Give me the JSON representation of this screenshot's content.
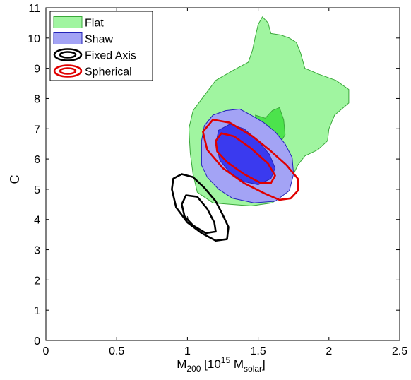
{
  "chart_data": {
    "type": "contour",
    "xlabel": {
      "main": "M",
      "sub1": "200",
      "mid1": " [10",
      "sup": "15",
      "mid2": " M",
      "sub2": "solar",
      "end": "]"
    },
    "ylabel": "C",
    "xlim": [
      0,
      2.5
    ],
    "ylim": [
      0,
      11
    ],
    "x_ticks": [
      0,
      0.5,
      1,
      1.5,
      2,
      2.5
    ],
    "x_tick_labels": [
      "0",
      "0.5",
      "1",
      "1.5",
      "2",
      "2.5"
    ],
    "y_ticks": [
      0,
      1,
      2,
      3,
      4,
      5,
      6,
      7,
      8,
      9,
      10,
      11
    ],
    "y_tick_labels": [
      "0",
      "1",
      "2",
      "3",
      "4",
      "5",
      "6",
      "7",
      "8",
      "9",
      "10",
      "11"
    ],
    "grid": false,
    "legend_position": "top-left",
    "series": [
      {
        "name": "Flat",
        "style": "filled",
        "fill_outer": "#a0f5a0",
        "fill_inner": "#4ce34c",
        "stroke": "#3aa83a",
        "contours": [
          [
            [
              1.01,
              7.0
            ],
            [
              1.04,
              7.6
            ],
            [
              1.12,
              8.1
            ],
            [
              1.2,
              8.6
            ],
            [
              1.33,
              8.95
            ],
            [
              1.43,
              9.2
            ],
            [
              1.46,
              9.6
            ],
            [
              1.48,
              10.05
            ],
            [
              1.5,
              10.45
            ],
            [
              1.53,
              10.7
            ],
            [
              1.57,
              10.5
            ],
            [
              1.59,
              10.15
            ],
            [
              1.66,
              10.1
            ],
            [
              1.72,
              10.0
            ],
            [
              1.77,
              9.85
            ],
            [
              1.8,
              9.5
            ],
            [
              1.83,
              9.0
            ],
            [
              1.93,
              8.8
            ],
            [
              2.05,
              8.6
            ],
            [
              2.14,
              8.3
            ],
            [
              2.14,
              7.85
            ],
            [
              2.04,
              7.45
            ],
            [
              2.0,
              7.0
            ],
            [
              1.99,
              6.6
            ],
            [
              1.92,
              6.3
            ],
            [
              1.83,
              6.1
            ],
            [
              1.78,
              5.8
            ],
            [
              1.74,
              5.4
            ],
            [
              1.7,
              4.95
            ],
            [
              1.6,
              4.55
            ],
            [
              1.45,
              4.45
            ],
            [
              1.3,
              4.5
            ],
            [
              1.18,
              4.55
            ],
            [
              1.07,
              4.9
            ],
            [
              1.04,
              5.5
            ],
            [
              1.02,
              6.2
            ],
            [
              1.01,
              7.0
            ]
          ],
          [
            [
              1.48,
              7.45
            ],
            [
              1.55,
              7.35
            ],
            [
              1.6,
              7.6
            ],
            [
              1.65,
              7.7
            ],
            [
              1.68,
              7.3
            ],
            [
              1.69,
              6.8
            ],
            [
              1.65,
              6.5
            ],
            [
              1.59,
              6.45
            ],
            [
              1.53,
              6.6
            ],
            [
              1.5,
              7.0
            ],
            [
              1.48,
              7.45
            ]
          ]
        ]
      },
      {
        "name": "Shaw",
        "style": "filled",
        "fill_outer": "#a3a3f5",
        "fill_inner": "#3a3aef",
        "stroke": "#2323b8",
        "contours": [
          [
            [
              1.1,
              6.6
            ],
            [
              1.12,
              7.1
            ],
            [
              1.18,
              7.45
            ],
            [
              1.27,
              7.6
            ],
            [
              1.37,
              7.65
            ],
            [
              1.45,
              7.45
            ],
            [
              1.54,
              7.2
            ],
            [
              1.62,
              6.9
            ],
            [
              1.69,
              6.5
            ],
            [
              1.74,
              6.05
            ],
            [
              1.75,
              5.5
            ],
            [
              1.72,
              4.95
            ],
            [
              1.62,
              4.6
            ],
            [
              1.47,
              4.55
            ],
            [
              1.32,
              4.7
            ],
            [
              1.22,
              5.0
            ],
            [
              1.14,
              5.4
            ],
            [
              1.1,
              5.8
            ],
            [
              1.1,
              6.6
            ]
          ],
          [
            [
              1.2,
              6.5
            ],
            [
              1.22,
              6.95
            ],
            [
              1.3,
              7.15
            ],
            [
              1.4,
              7.0
            ],
            [
              1.5,
              6.6
            ],
            [
              1.58,
              6.15
            ],
            [
              1.62,
              5.7
            ],
            [
              1.59,
              5.35
            ],
            [
              1.5,
              5.15
            ],
            [
              1.4,
              5.25
            ],
            [
              1.3,
              5.55
            ],
            [
              1.23,
              5.95
            ],
            [
              1.2,
              6.5
            ]
          ]
        ]
      },
      {
        "name": "Fixed Axis",
        "style": "line",
        "stroke": "#000000",
        "contours": [
          [
            [
              0.89,
              5.0
            ],
            [
              0.9,
              5.35
            ],
            [
              0.96,
              5.5
            ],
            [
              1.04,
              5.4
            ],
            [
              1.12,
              5.05
            ],
            [
              1.2,
              4.6
            ],
            [
              1.25,
              4.15
            ],
            [
              1.29,
              3.75
            ],
            [
              1.28,
              3.35
            ],
            [
              1.2,
              3.3
            ],
            [
              1.1,
              3.55
            ],
            [
              1.0,
              3.9
            ],
            [
              0.92,
              4.4
            ],
            [
              0.89,
              5.0
            ]
          ],
          [
            [
              0.96,
              4.5
            ],
            [
              0.99,
              4.8
            ],
            [
              1.07,
              4.75
            ],
            [
              1.14,
              4.35
            ],
            [
              1.19,
              3.9
            ],
            [
              1.2,
              3.6
            ],
            [
              1.13,
              3.55
            ],
            [
              1.04,
              3.8
            ],
            [
              0.98,
              4.1
            ],
            [
              0.96,
              4.5
            ]
          ]
        ],
        "marker": {
          "x": 1.0,
          "y": 4.0,
          "symbol": "*"
        }
      },
      {
        "name": "Spherical",
        "style": "line",
        "stroke": "#e00000",
        "contours": [
          [
            [
              1.11,
              6.9
            ],
            [
              1.18,
              7.3
            ],
            [
              1.3,
              7.2
            ],
            [
              1.46,
              6.75
            ],
            [
              1.58,
              6.3
            ],
            [
              1.7,
              5.8
            ],
            [
              1.78,
              5.35
            ],
            [
              1.78,
              4.95
            ],
            [
              1.73,
              4.7
            ],
            [
              1.65,
              4.65
            ],
            [
              1.55,
              4.85
            ],
            [
              1.4,
              5.2
            ],
            [
              1.25,
              5.7
            ],
            [
              1.14,
              6.3
            ],
            [
              1.11,
              6.9
            ]
          ],
          [
            [
              1.2,
              6.6
            ],
            [
              1.24,
              6.85
            ],
            [
              1.33,
              6.75
            ],
            [
              1.45,
              6.35
            ],
            [
              1.57,
              5.85
            ],
            [
              1.62,
              5.45
            ],
            [
              1.59,
              5.2
            ],
            [
              1.52,
              5.2
            ],
            [
              1.4,
              5.5
            ],
            [
              1.28,
              5.9
            ],
            [
              1.21,
              6.25
            ],
            [
              1.2,
              6.6
            ]
          ]
        ]
      }
    ]
  }
}
